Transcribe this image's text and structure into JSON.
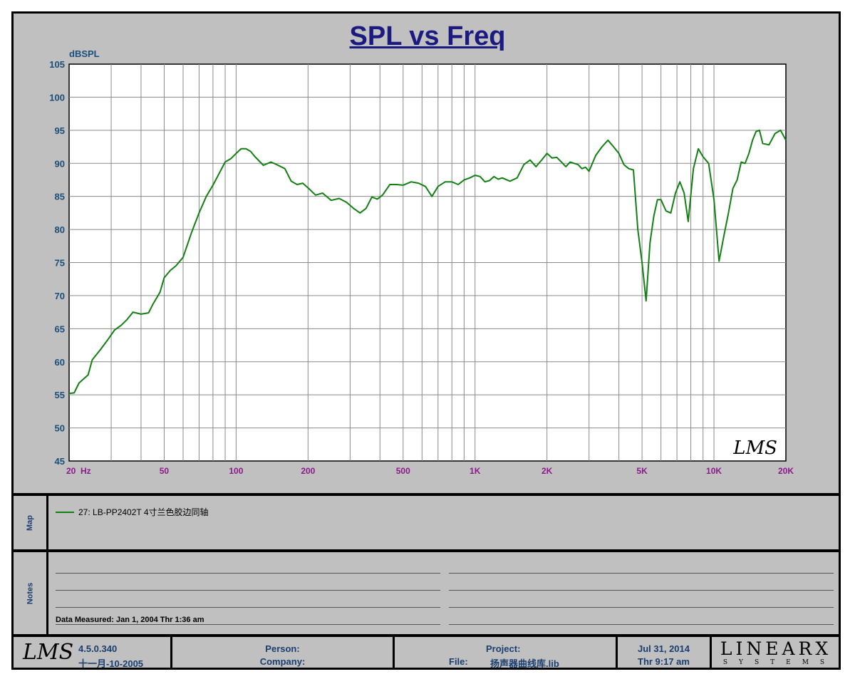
{
  "chart_data": {
    "type": "line",
    "title": "SPL vs Freq",
    "ylabel": "dBSPL",
    "xscale": "log",
    "xlim": [
      20,
      20000
    ],
    "ylim": [
      45,
      105
    ],
    "grid": true,
    "y_ticks": [
      "105",
      "100",
      "95",
      "90",
      "85",
      "80",
      "75",
      "70",
      "65",
      "60",
      "55",
      "50",
      "45"
    ],
    "x_ticks": [
      {
        "value": 20,
        "label": "20  Hz"
      },
      {
        "value": 50,
        "label": "50"
      },
      {
        "value": 100,
        "label": "100"
      },
      {
        "value": 200,
        "label": "200"
      },
      {
        "value": 500,
        "label": "500"
      },
      {
        "value": 1000,
        "label": "1K"
      },
      {
        "value": 2000,
        "label": "2K"
      },
      {
        "value": 5000,
        "label": "5K"
      },
      {
        "value": 10000,
        "label": "10K"
      },
      {
        "value": 20000,
        "label": "20K"
      }
    ],
    "series": [
      {
        "name": "27: LB-PP2402T 4寸兰色胶边同轴",
        "color": "#138013",
        "x": [
          20,
          21,
          22,
          24,
          25,
          27,
          29,
          31,
          33,
          35,
          37,
          40,
          43,
          45,
          48,
          50,
          53,
          56,
          60,
          65,
          70,
          75,
          80,
          85,
          90,
          95,
          100,
          105,
          110,
          115,
          120,
          130,
          140,
          150,
          160,
          170,
          180,
          190,
          200,
          215,
          230,
          250,
          270,
          290,
          310,
          330,
          350,
          370,
          390,
          410,
          440,
          470,
          500,
          540,
          580,
          620,
          660,
          700,
          750,
          800,
          850,
          900,
          950,
          1000,
          1050,
          1100,
          1150,
          1200,
          1250,
          1300,
          1400,
          1500,
          1600,
          1700,
          1800,
          1900,
          2000,
          2100,
          2200,
          2300,
          2400,
          2500,
          2600,
          2700,
          2800,
          2900,
          3000,
          3200,
          3400,
          3600,
          3800,
          4000,
          4200,
          4400,
          4600,
          4800,
          5000,
          5200,
          5400,
          5600,
          5800,
          6000,
          6300,
          6600,
          6900,
          7200,
          7500,
          7800,
          8200,
          8600,
          9000,
          9500,
          10000,
          10500,
          11000,
          11500,
          12000,
          12500,
          13000,
          13500,
          14000,
          14500,
          15000,
          15500,
          16000,
          17000,
          18000,
          19000,
          20000
        ],
        "y": [
          55.2,
          55.3,
          56.8,
          58,
          60.3,
          61.8,
          63.3,
          64.8,
          65.5,
          66.4,
          67.5,
          67.2,
          67.4,
          68.8,
          70.5,
          72.7,
          73.8,
          74.5,
          75.8,
          79.5,
          82.5,
          85,
          86.7,
          88.5,
          90.2,
          90.7,
          91.5,
          92.2,
          92.2,
          91.8,
          91,
          89.7,
          90.2,
          89.7,
          89.2,
          87.3,
          86.8,
          87,
          86.3,
          85.2,
          85.5,
          84.4,
          84.7,
          84.1,
          83.2,
          82.5,
          83.2,
          84.9,
          84.6,
          85.2,
          86.8,
          86.8,
          86.7,
          87.2,
          87,
          86.5,
          85,
          86.5,
          87.2,
          87.2,
          86.8,
          87.5,
          87.8,
          88.2,
          88,
          87.2,
          87.4,
          88,
          87.6,
          87.8,
          87.3,
          87.8,
          89.8,
          90.5,
          89.5,
          90.5,
          91.5,
          90.8,
          90.9,
          90.2,
          89.5,
          90.2,
          90,
          89.8,
          89.2,
          89.4,
          88.8,
          91.2,
          92.5,
          93.5,
          92.5,
          91.5,
          89.8,
          89.2,
          89,
          80,
          75,
          69.2,
          78,
          82,
          84.5,
          84.5,
          82.8,
          82.5,
          85.5,
          87.2,
          85.5,
          81.2,
          89.2,
          92.2,
          91,
          90,
          84.5,
          75.2,
          79,
          82.5,
          86.2,
          87.5,
          90.2,
          90,
          91.5,
          93.5,
          94.8,
          95,
          93,
          92.8,
          94.5,
          95,
          93.5
        ]
      }
    ]
  },
  "annotations": {
    "plot_logo": "LMS"
  },
  "panels": {
    "map_label": "Map",
    "notes_label": "Notes",
    "legend_entry": "27: LB-PP2402T 4寸兰色胶边同轴",
    "data_measured": "Data Measured: Jan  1, 2004  Thr  1:36 am"
  },
  "footer": {
    "logo": "LMS",
    "version": "4.5.0.340",
    "version_date": "十一月-10-2005",
    "person_label": "Person:",
    "company_label": "Company:",
    "project_label": "Project:",
    "file_label": "File:",
    "file_value": "扬声器曲线库.lib",
    "date": "Jul 31, 2014",
    "time": "Thr  9:17 am",
    "brand": "LINEARX",
    "brand_sub": "SYSTEMS"
  }
}
